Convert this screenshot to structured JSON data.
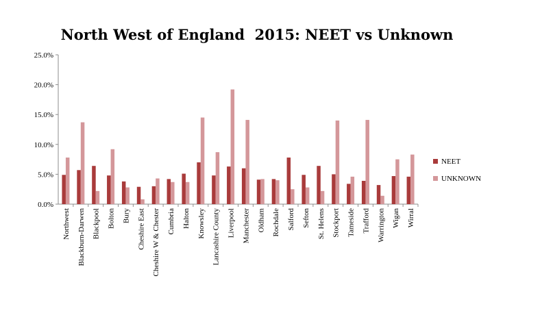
{
  "chart_data": {
    "type": "bar",
    "title": "North West of England  2015: NEET vs Unknown",
    "xlabel": "",
    "ylabel": "",
    "ylim": [
      0,
      25
    ],
    "yticks": [
      "0.0%",
      "5.0%",
      "10.0%",
      "15.0%",
      "20.0%",
      "25.0%"
    ],
    "grid": false,
    "legend_position": "right",
    "categories": [
      "Northwest",
      "Blackburn-Darwen",
      "Blackpool",
      "Bolton",
      "Bury",
      "Cheshire East",
      "Cheshire W & Chester",
      "Cumbria",
      "Halton",
      "Knowsley",
      "Lancashire County",
      "Liverpool",
      "Manchester",
      "Oldham",
      "Rochdale",
      "Salford",
      "Sefton",
      "St. Helens",
      "Stockport",
      "Tameside",
      "Trafford",
      "Warrington",
      "Wigan",
      "Wirral"
    ],
    "series": [
      {
        "name": "NEET",
        "color": "#a93b3b",
        "values": [
          4.9,
          5.7,
          6.4,
          4.8,
          3.8,
          2.9,
          3.0,
          4.2,
          5.1,
          7.0,
          4.8,
          6.3,
          6.0,
          4.1,
          4.2,
          7.8,
          4.9,
          6.4,
          5.0,
          3.4,
          3.9,
          3.2,
          4.7,
          4.6
        ]
      },
      {
        "name": "UNKNOWN",
        "color": "#d4979a",
        "values": [
          7.8,
          13.7,
          2.2,
          9.2,
          2.8,
          0.8,
          4.3,
          3.7,
          3.7,
          14.5,
          8.7,
          19.2,
          14.1,
          4.2,
          4.0,
          2.5,
          2.8,
          2.2,
          14.0,
          4.6,
          14.1,
          1.4,
          7.5,
          8.3
        ]
      }
    ]
  }
}
